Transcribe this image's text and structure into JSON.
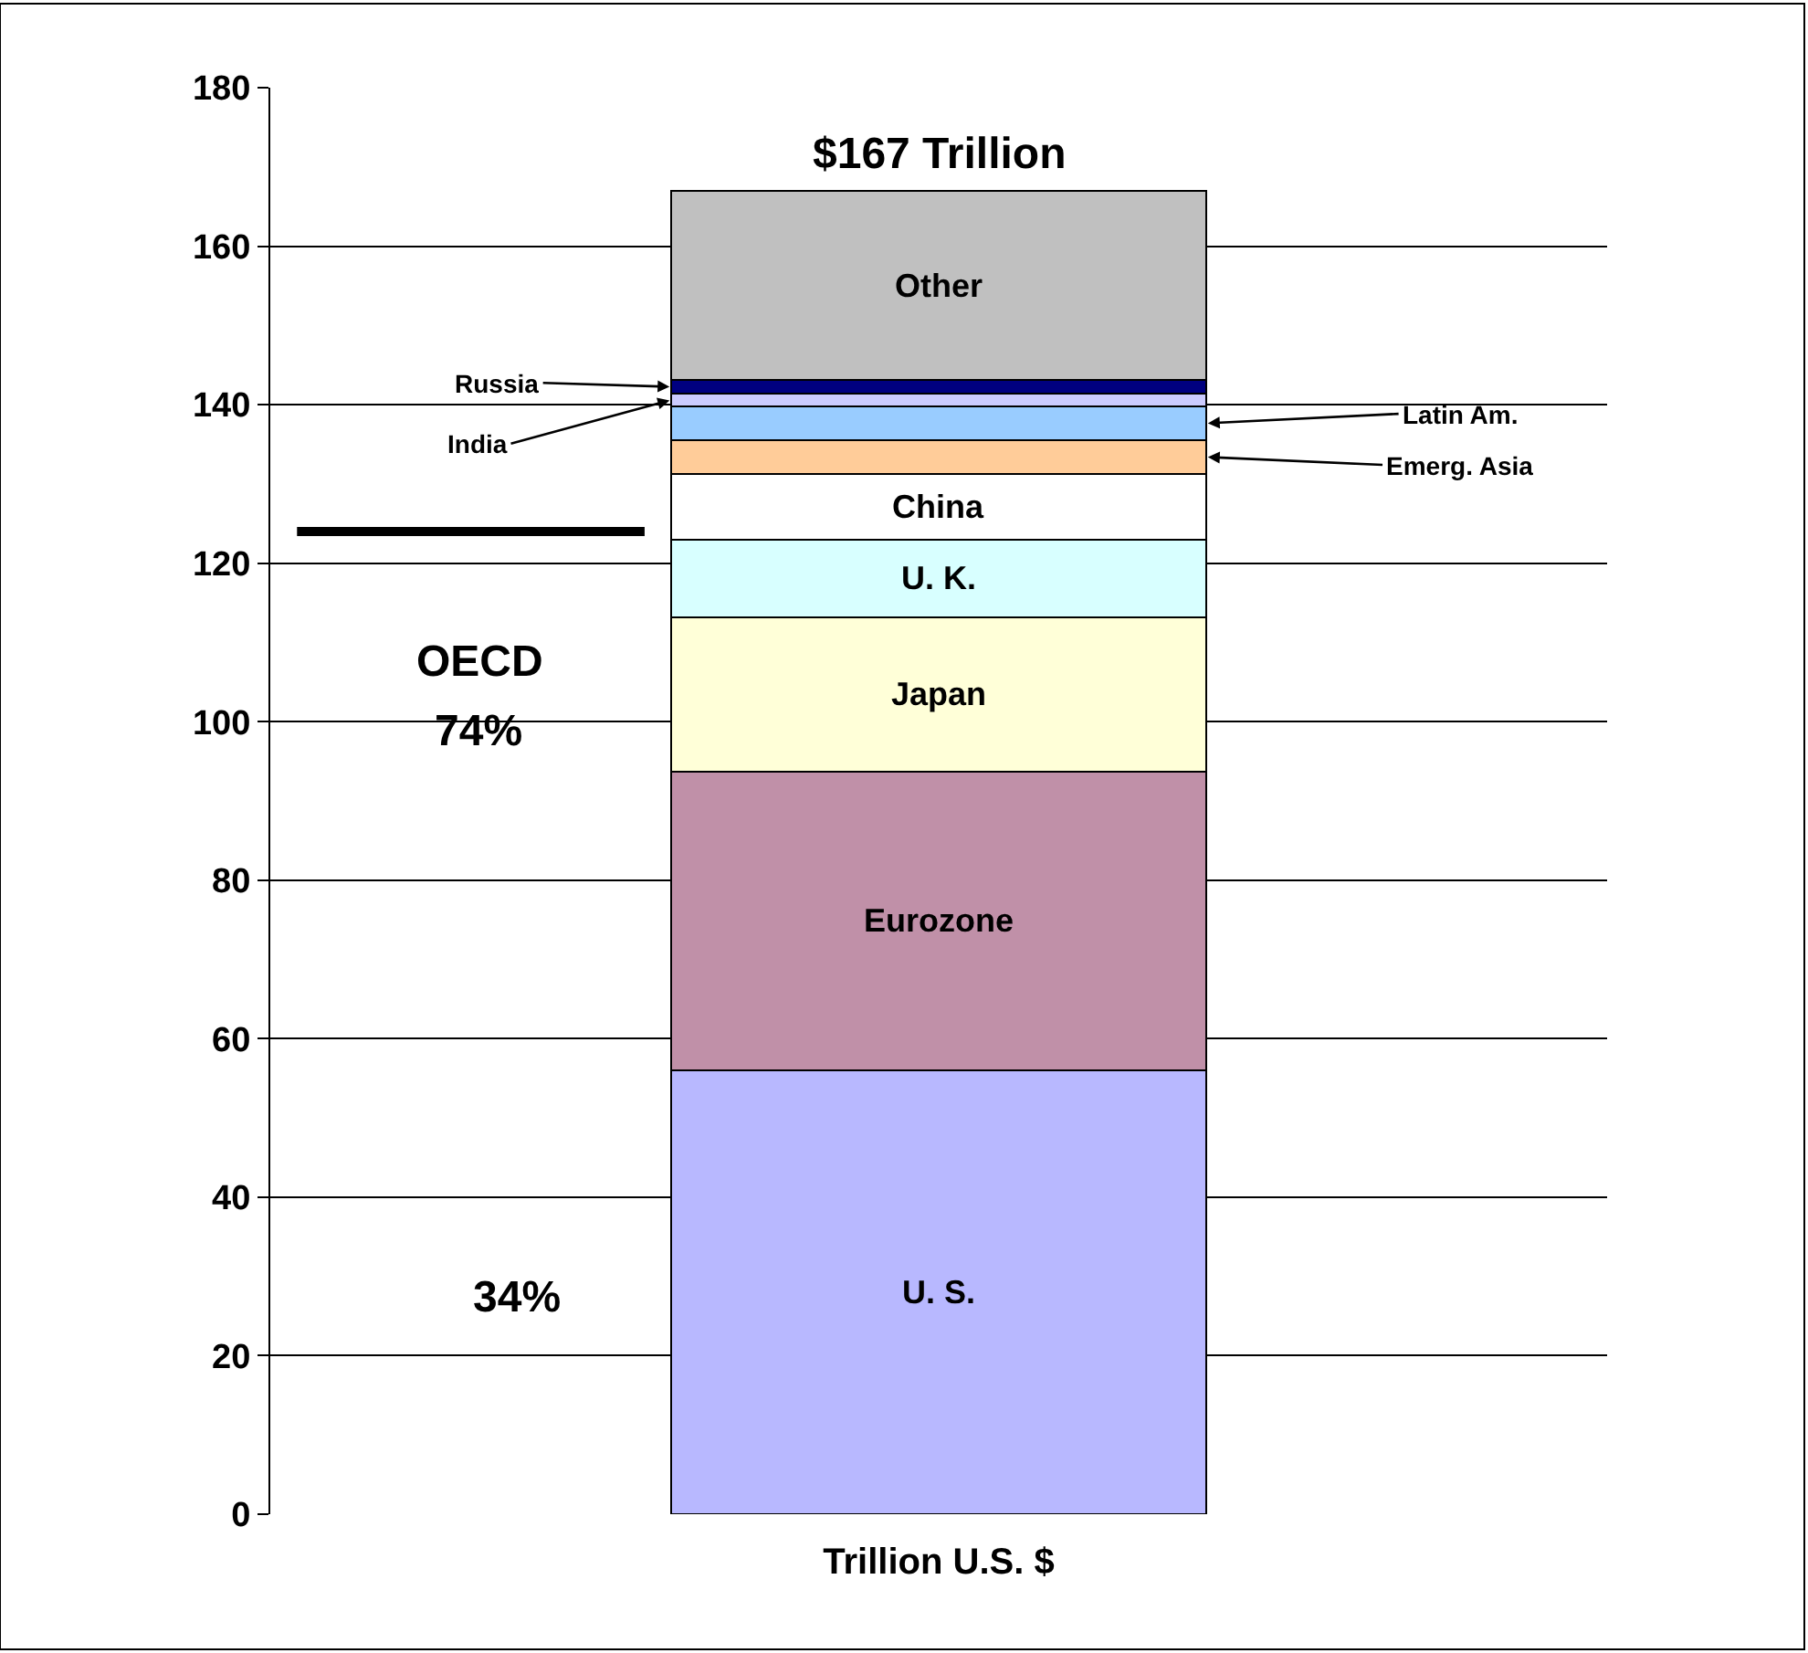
{
  "chart_data": {
    "type": "bar",
    "stacked": true,
    "categories": [
      null
    ],
    "xlabel": "Trillion U.S. $",
    "totals": [
      "$167 Trillion"
    ],
    "series": [
      {
        "name": "U. S.",
        "color": "#b8b8ff",
        "values": [
          56
        ]
      },
      {
        "name": "Eurozone",
        "color": "#c090a8",
        "values": [
          37.7
        ]
      },
      {
        "name": "Japan",
        "color": "#ffffd8",
        "values": [
          19.5
        ]
      },
      {
        "name": "U. K.",
        "color": "#d8ffff",
        "values": [
          9.8
        ]
      },
      {
        "name": "China",
        "color": "#ffffff",
        "values": [
          8.3
        ]
      },
      {
        "name": "Emerg. Asia",
        "color": "#ffcc99",
        "values": [
          4.2
        ]
      },
      {
        "name": "Latin Am.",
        "color": "#99ccff",
        "values": [
          4.3
        ]
      },
      {
        "name": "India",
        "color": "#ccccff",
        "values": [
          1.6
        ]
      },
      {
        "name": "Russia",
        "color": "#000080",
        "values": [
          1.7
        ]
      },
      {
        "name": "Other",
        "color": "#c0c0c0",
        "values": [
          23.9
        ]
      }
    ],
    "ylim": [
      0,
      180
    ],
    "yticks": [
      0,
      20,
      40,
      60,
      80,
      100,
      120,
      140,
      160,
      180
    ],
    "grid": "y",
    "tick_labels": "y",
    "ref_lines": [
      {
        "axis": "y",
        "value": 124,
        "color": "#000000"
      }
    ],
    "annotations": [
      "OECD",
      "74%",
      "34%"
    ]
  }
}
